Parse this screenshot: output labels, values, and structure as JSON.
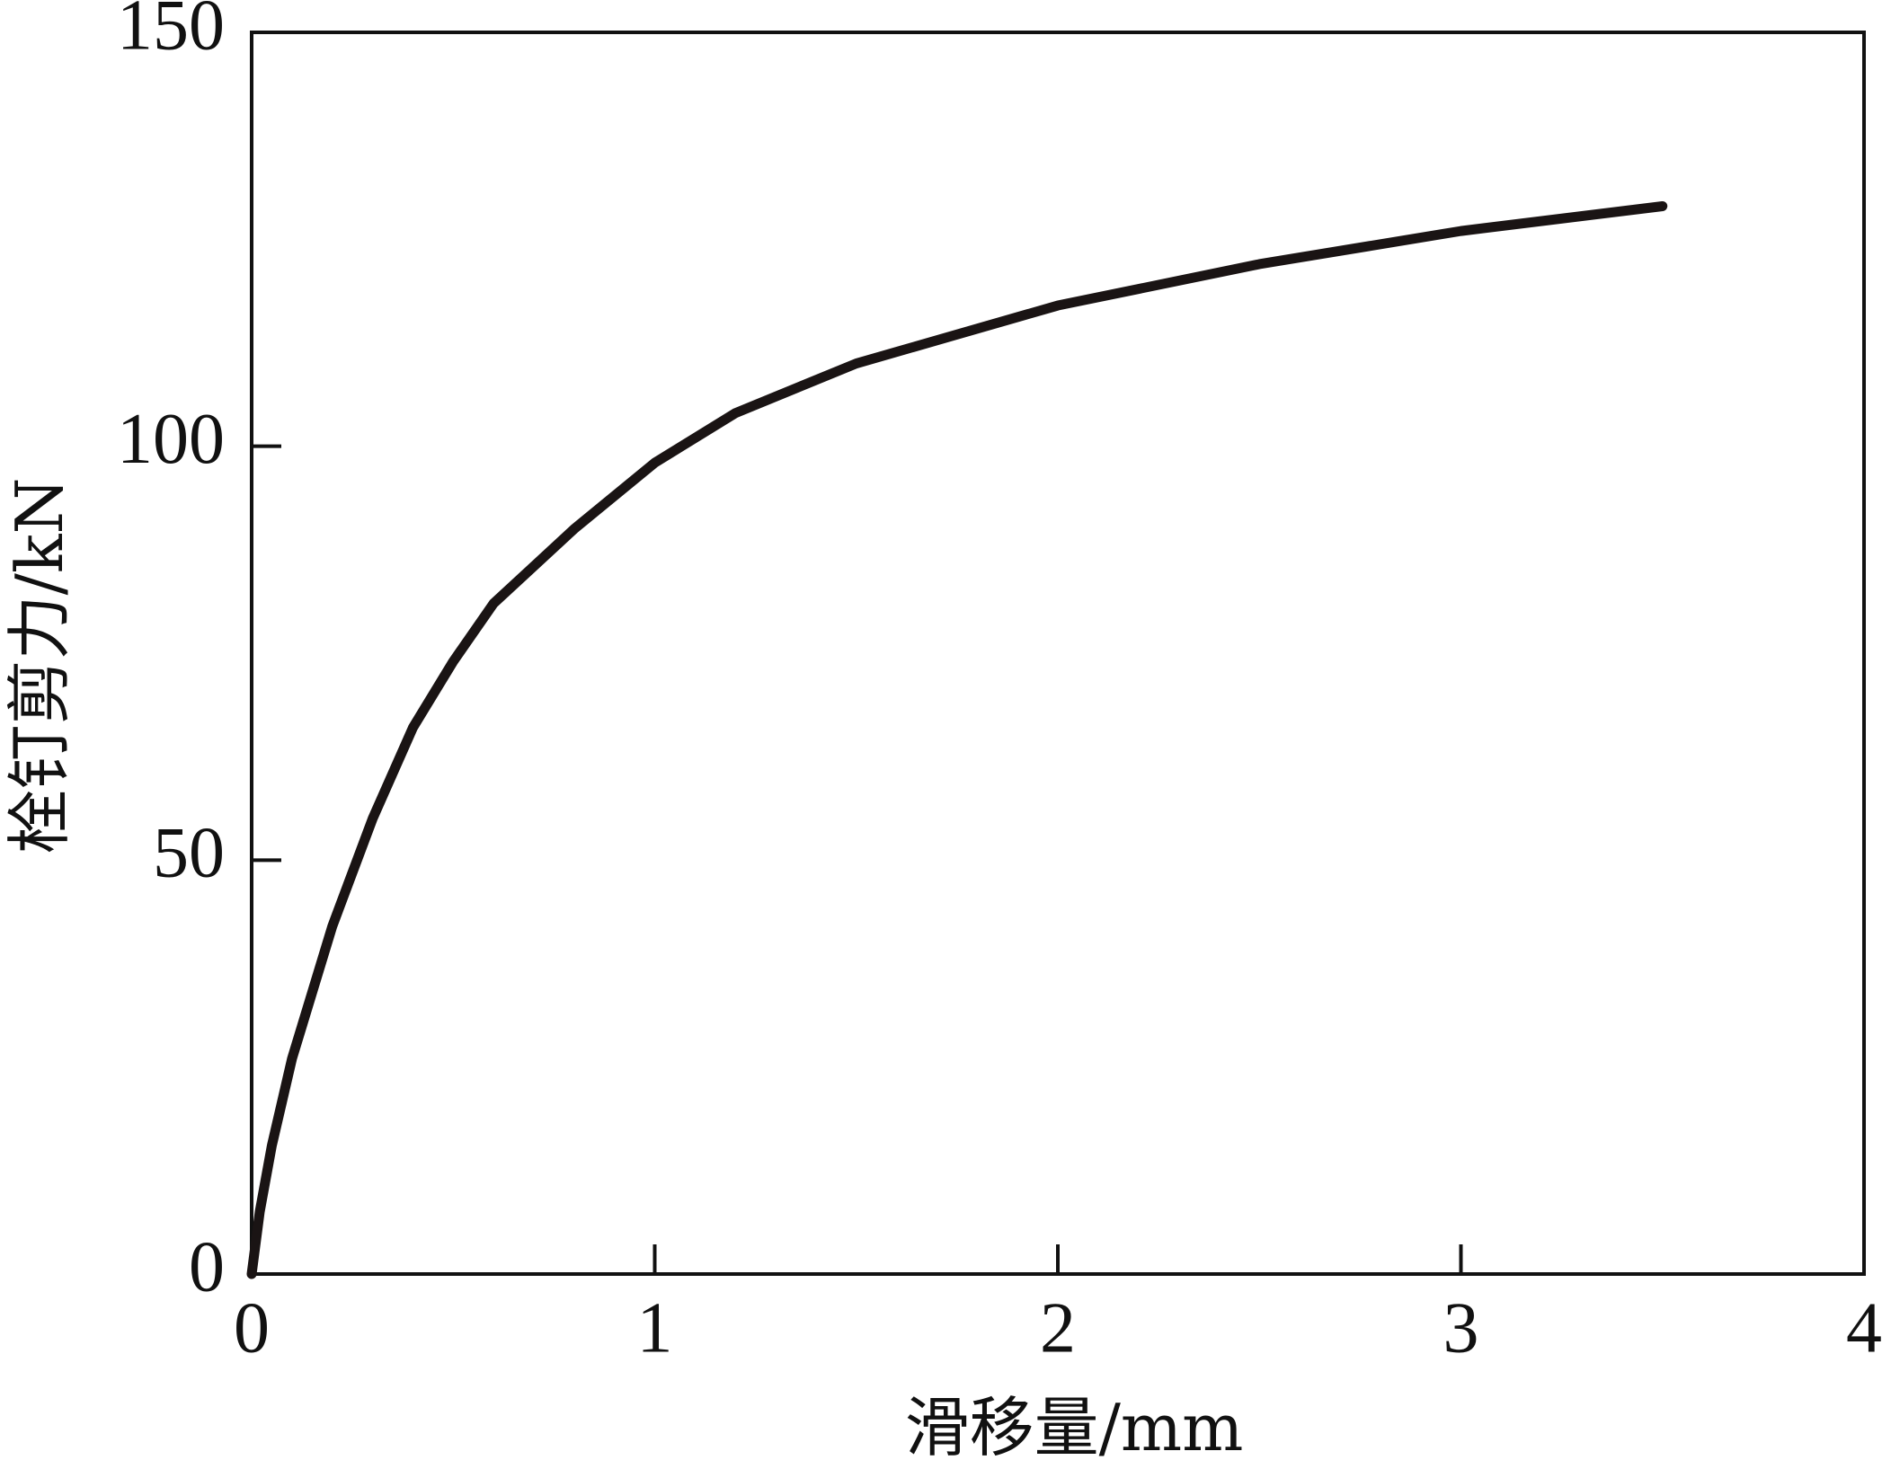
{
  "chart_data": {
    "type": "line",
    "xlabel": "滑移量/mm",
    "ylabel": "栓钉剪力/kN",
    "x": [
      0,
      0.02,
      0.05,
      0.1,
      0.2,
      0.3,
      0.4,
      0.5,
      0.6,
      0.8,
      1.0,
      1.2,
      1.5,
      2.0,
      2.5,
      3.0,
      3.5
    ],
    "series": [
      {
        "color": "#1a1414",
        "values": [
          0,
          7.5,
          15.5,
          26,
          42,
          55,
          66,
          74,
          81,
          90,
          98,
          104,
          110,
          117,
          122,
          126,
          129
        ]
      }
    ],
    "xlim": [
      0,
      4
    ],
    "xticks": [
      0,
      1,
      2,
      3,
      4
    ],
    "ylim": [
      0,
      150
    ],
    "yticks": [
      0,
      50,
      100,
      150
    ],
    "grid": false
  }
}
